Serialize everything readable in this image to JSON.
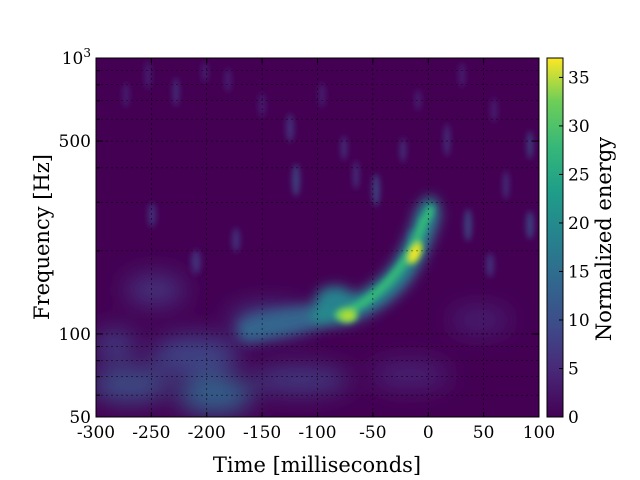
{
  "chart_data": {
    "type": "heatmap",
    "title": "",
    "xlabel": "Time [milliseconds]",
    "ylabel": "Frequency [Hz]",
    "colorbar_label": "Normalized energy",
    "xlim": [
      -300,
      100
    ],
    "ylim": [
      50,
      1000
    ],
    "y_scale": "log",
    "colormap": "viridis",
    "grid": true,
    "clim": [
      0,
      37
    ],
    "x_ticks": [
      {
        "value": -300,
        "label": "-300"
      },
      {
        "value": -250,
        "label": "-250"
      },
      {
        "value": -200,
        "label": "-200"
      },
      {
        "value": -150,
        "label": "-150"
      },
      {
        "value": -100,
        "label": "-100"
      },
      {
        "value": -50,
        "label": "-50"
      },
      {
        "value": 0,
        "label": "0"
      },
      {
        "value": 50,
        "label": "50"
      },
      {
        "value": 100,
        "label": "100"
      }
    ],
    "y_ticks": [
      {
        "value": 50,
        "label": "50"
      },
      {
        "value": 100,
        "label": "100"
      },
      {
        "value": 500,
        "label": "500"
      },
      {
        "value": 1000,
        "label": "10",
        "sup": "3"
      }
    ],
    "colorbar_ticks": [
      {
        "value": 0,
        "label": "0"
      },
      {
        "value": 5,
        "label": "5"
      },
      {
        "value": 10,
        "label": "10"
      },
      {
        "value": 15,
        "label": "15"
      },
      {
        "value": 20,
        "label": "20"
      },
      {
        "value": 25,
        "label": "25"
      },
      {
        "value": 30,
        "label": "30"
      },
      {
        "value": 35,
        "label": "35"
      }
    ],
    "chirp_track": [
      {
        "t": -160,
        "f": 85,
        "energy": 6
      },
      {
        "t": -130,
        "f": 90,
        "energy": 8
      },
      {
        "t": -100,
        "f": 98,
        "energy": 12
      },
      {
        "t": -85,
        "f": 105,
        "energy": 18
      },
      {
        "t": -75,
        "f": 110,
        "energy": 26
      },
      {
        "t": -60,
        "f": 117,
        "energy": 20
      },
      {
        "t": -40,
        "f": 130,
        "energy": 18
      },
      {
        "t": -25,
        "f": 150,
        "energy": 24
      },
      {
        "t": -15,
        "f": 175,
        "energy": 34
      },
      {
        "t": -10,
        "f": 190,
        "energy": 37
      },
      {
        "t": -5,
        "f": 215,
        "energy": 26
      },
      {
        "t": 0,
        "f": 240,
        "energy": 18
      },
      {
        "t": 5,
        "f": 280,
        "energy": 8
      }
    ]
  }
}
